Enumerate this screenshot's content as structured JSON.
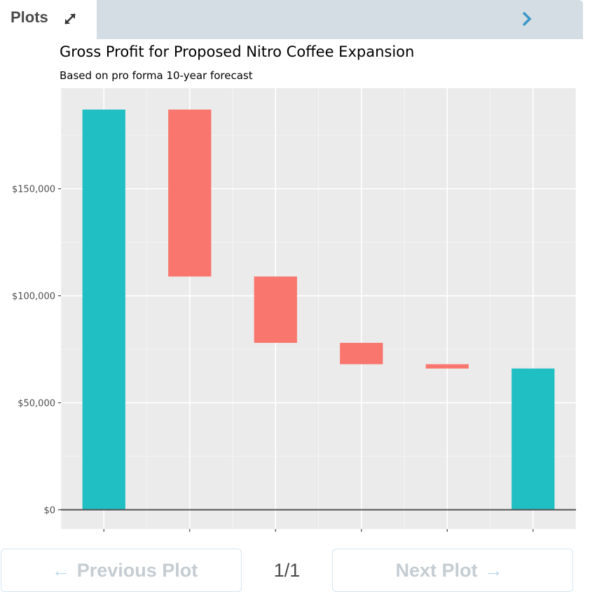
{
  "header": {
    "title": "Plots",
    "expand_icon": "expand-icon",
    "next_icon": "chevron-right-icon"
  },
  "footer": {
    "prev_label": "Previous Plot",
    "next_label": "Next Plot",
    "page_indicator": "1/1"
  },
  "colors": {
    "positive": "#20bfc4",
    "negative": "#f8766d",
    "panel": "#ebebeb",
    "grid": "#ffffff",
    "header_bar": "#d3dde3"
  },
  "chart_data": {
    "type": "bar",
    "subtype": "waterfall",
    "title": "Gross Profit for Proposed Nitro Coffee Expansion",
    "subtitle": "Based on pro forma 10-year forecast",
    "xlabel": "",
    "ylabel": "",
    "ylim": [
      -9000,
      197000
    ],
    "yticks": [
      0,
      50000,
      100000,
      150000
    ],
    "ytick_labels": [
      "$0",
      "$50,000",
      "$100,000",
      "$150,000"
    ],
    "xtick_labels": [
      "",
      "",
      "",
      "",
      "",
      ""
    ],
    "grid": true,
    "bars": [
      {
        "start": 0,
        "end": 187000,
        "kind": "total"
      },
      {
        "start": 187000,
        "end": 109000,
        "kind": "decrease"
      },
      {
        "start": 109000,
        "end": 78000,
        "kind": "decrease"
      },
      {
        "start": 78000,
        "end": 68000,
        "kind": "decrease"
      },
      {
        "start": 68000,
        "end": 66000,
        "kind": "decrease"
      },
      {
        "start": 0,
        "end": 66000,
        "kind": "total"
      }
    ]
  }
}
